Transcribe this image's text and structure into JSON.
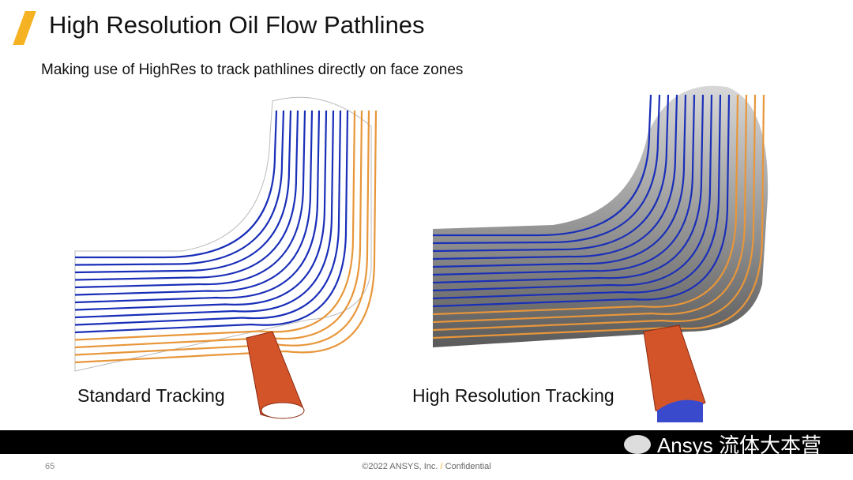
{
  "slide": {
    "title": "High Resolution Oil Flow Pathlines",
    "subtitle": "Making use of HighRes to track pathlines directly on face zones",
    "left_caption": "Standard Tracking",
    "right_caption": "High Resolution Tracking",
    "page_number": "65",
    "footer_copyright": "©2022 ANSYS, Inc.",
    "footer_separator": "/",
    "footer_confidential": "Confidential",
    "watermark": "Ansys 流体大本营"
  },
  "colors": {
    "accent": "#f5b324",
    "pathline_blue": "#1a2fb8",
    "pathline_orange": "#e8963a",
    "pipe_gray": "#8a8a8a",
    "nozzle": "#d4542a"
  }
}
